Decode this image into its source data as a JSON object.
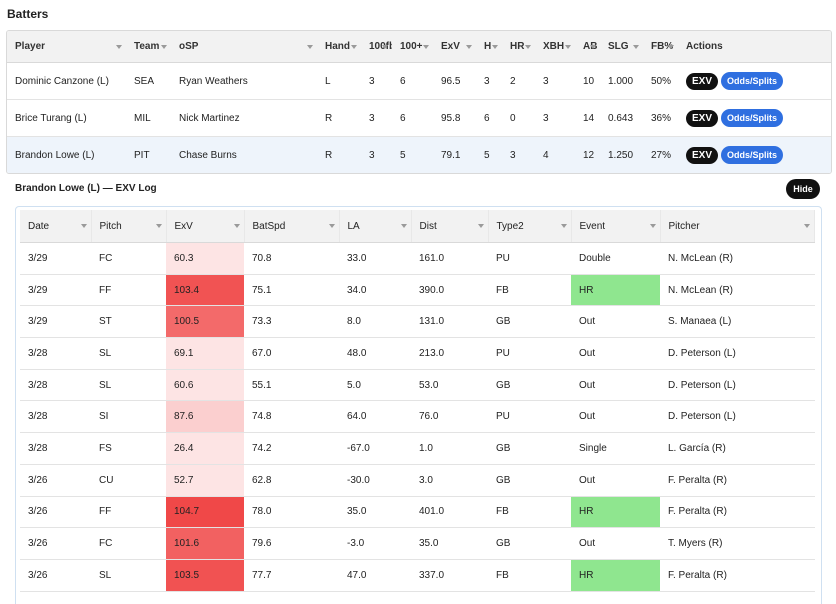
{
  "section_title": "Batters",
  "batters": {
    "columns": [
      "Player",
      "Team",
      "oSP",
      "Hand",
      "100fb",
      "100+",
      "ExV",
      "H",
      "HR",
      "XBH",
      "AB",
      "SLG",
      "FB%",
      "Actions"
    ],
    "rows": [
      {
        "player": "Dominic Canzone (L)",
        "team": "SEA",
        "osp": "Ryan Weathers",
        "hand": "L",
        "fb100": "3",
        "plus100": "6",
        "exv": "96.5",
        "h": "3",
        "hr": "2",
        "xbh": "3",
        "ab": "10",
        "slg": "1.000",
        "fbpct": "50%"
      },
      {
        "player": "Brice Turang (L)",
        "team": "MIL",
        "osp": "Nick Martinez",
        "hand": "R",
        "fb100": "3",
        "plus100": "6",
        "exv": "95.8",
        "h": "6",
        "hr": "0",
        "xbh": "3",
        "ab": "14",
        "slg": "0.643",
        "fbpct": "36%"
      },
      {
        "player": "Brandon Lowe (L)",
        "team": "PIT",
        "osp": "Chase Burns",
        "hand": "R",
        "fb100": "3",
        "plus100": "5",
        "exv": "79.1",
        "h": "5",
        "hr": "3",
        "xbh": "4",
        "ab": "12",
        "slg": "1.250",
        "fbpct": "27%"
      }
    ],
    "exv_button": "EXV",
    "odds_button": "Odds/Splits"
  },
  "log": {
    "title": "Brandon Lowe (L) — EXV Log",
    "hide_label": "Hide",
    "columns": [
      "Date",
      "Pitch",
      "ExV",
      "BatSpd",
      "LA",
      "Dist",
      "Type2",
      "Event",
      "Pitcher"
    ],
    "rows": [
      {
        "date": "3/29",
        "pitch": "FC",
        "exv": "60.3",
        "batspd": "70.8",
        "la": "33.0",
        "dist": "161.0",
        "type2": "PU",
        "event": "Double",
        "pitcher": "N. McLean (R)"
      },
      {
        "date": "3/29",
        "pitch": "FF",
        "exv": "103.4",
        "batspd": "75.1",
        "la": "34.0",
        "dist": "390.0",
        "type2": "FB",
        "event": "HR",
        "pitcher": "N. McLean (R)"
      },
      {
        "date": "3/29",
        "pitch": "ST",
        "exv": "100.5",
        "batspd": "73.3",
        "la": "8.0",
        "dist": "131.0",
        "type2": "GB",
        "event": "Out",
        "pitcher": "S. Manaea (L)"
      },
      {
        "date": "3/28",
        "pitch": "SL",
        "exv": "69.1",
        "batspd": "67.0",
        "la": "48.0",
        "dist": "213.0",
        "type2": "PU",
        "event": "Out",
        "pitcher": "D. Peterson (L)"
      },
      {
        "date": "3/28",
        "pitch": "SL",
        "exv": "60.6",
        "batspd": "55.1",
        "la": "5.0",
        "dist": "53.0",
        "type2": "GB",
        "event": "Out",
        "pitcher": "D. Peterson (L)"
      },
      {
        "date": "3/28",
        "pitch": "SI",
        "exv": "87.6",
        "batspd": "74.8",
        "la": "64.0",
        "dist": "76.0",
        "type2": "PU",
        "event": "Out",
        "pitcher": "D. Peterson (L)"
      },
      {
        "date": "3/28",
        "pitch": "FS",
        "exv": "26.4",
        "batspd": "74.2",
        "la": "-67.0",
        "dist": "1.0",
        "type2": "GB",
        "event": "Single",
        "pitcher": "L. García (R)"
      },
      {
        "date": "3/26",
        "pitch": "CU",
        "exv": "52.7",
        "batspd": "62.8",
        "la": "-30.0",
        "dist": "3.0",
        "type2": "GB",
        "event": "Out",
        "pitcher": "F. Peralta (R)"
      },
      {
        "date": "3/26",
        "pitch": "FF",
        "exv": "104.7",
        "batspd": "78.0",
        "la": "35.0",
        "dist": "401.0",
        "type2": "FB",
        "event": "HR",
        "pitcher": "F. Peralta (R)"
      },
      {
        "date": "3/26",
        "pitch": "FC",
        "exv": "101.6",
        "batspd": "79.6",
        "la": "-3.0",
        "dist": "35.0",
        "type2": "GB",
        "event": "Out",
        "pitcher": "T. Myers (R)"
      },
      {
        "date": "3/26",
        "pitch": "SL",
        "exv": "103.5",
        "batspd": "77.7",
        "la": "47.0",
        "dist": "337.0",
        "type2": "FB",
        "event": "HR",
        "pitcher": "F. Peralta (R)"
      }
    ]
  },
  "colors": {
    "hr_event": "#8fe68f",
    "exv_high": "#f04646",
    "exv_low": "#fde4e4",
    "odds_button": "#2f6fe0",
    "selected_row": "#eef4fb"
  }
}
